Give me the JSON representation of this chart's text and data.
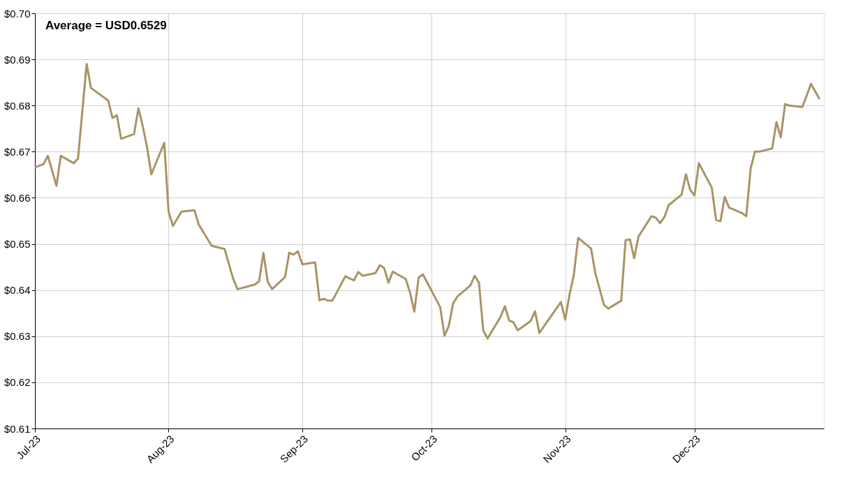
{
  "chart_data": {
    "type": "line",
    "annotations": [
      "Average = USD0.6529"
    ],
    "x": [
      "2023-07-01",
      "2023-07-03",
      "2023-07-04",
      "2023-07-06",
      "2023-07-07",
      "2023-07-10",
      "2023-07-11",
      "2023-07-13",
      "2023-07-14",
      "2023-07-18",
      "2023-07-19",
      "2023-07-20",
      "2023-07-21",
      "2023-07-24",
      "2023-07-25",
      "2023-07-26",
      "2023-07-27",
      "2023-07-28",
      "2023-07-31",
      "2023-08-01",
      "2023-08-02",
      "2023-08-04",
      "2023-08-07",
      "2023-08-08",
      "2023-08-11",
      "2023-08-14",
      "2023-08-16",
      "2023-08-17",
      "2023-08-21",
      "2023-08-22",
      "2023-08-23",
      "2023-08-24",
      "2023-08-25",
      "2023-08-28",
      "2023-08-29",
      "2023-08-30",
      "2023-08-31",
      "2023-09-01",
      "2023-09-04",
      "2023-09-05",
      "2023-09-06",
      "2023-09-07",
      "2023-09-08",
      "2023-09-11",
      "2023-09-13",
      "2023-09-14",
      "2023-09-15",
      "2023-09-18",
      "2023-09-19",
      "2023-09-20",
      "2023-09-21",
      "2023-09-22",
      "2023-09-25",
      "2023-09-26",
      "2023-09-27",
      "2023-09-28",
      "2023-09-29",
      "2023-10-03",
      "2023-10-04",
      "2023-10-05",
      "2023-10-06",
      "2023-10-07",
      "2023-10-10",
      "2023-10-11",
      "2023-10-12",
      "2023-10-13",
      "2023-10-14",
      "2023-10-17",
      "2023-10-18",
      "2023-10-19",
      "2023-10-20",
      "2023-10-21",
      "2023-10-24",
      "2023-10-25",
      "2023-10-26",
      "2023-10-31",
      "2023-11-01",
      "2023-11-02",
      "2023-11-03",
      "2023-11-04",
      "2023-11-07",
      "2023-11-08",
      "2023-11-10",
      "2023-11-11",
      "2023-11-14",
      "2023-11-15",
      "2023-11-16",
      "2023-11-17",
      "2023-11-18",
      "2023-11-21",
      "2023-11-22",
      "2023-11-23",
      "2023-11-24",
      "2023-11-25",
      "2023-11-28",
      "2023-11-29",
      "2023-11-30",
      "2023-12-01",
      "2023-12-02",
      "2023-12-05",
      "2023-12-06",
      "2023-12-07",
      "2023-12-08",
      "2023-12-09",
      "2023-12-12",
      "2023-12-13",
      "2023-12-14",
      "2023-12-15",
      "2023-12-16",
      "2023-12-19",
      "2023-12-20",
      "2023-12-21",
      "2023-12-22",
      "2023-12-23",
      "2023-12-26",
      "2023-12-27",
      "2023-12-28",
      "2023-12-30"
    ],
    "series": [
      {
        "color": "#a89466",
        "values": [
          0.6666,
          0.6673,
          0.6691,
          0.6626,
          0.6691,
          0.6675,
          0.6685,
          0.689,
          0.6838,
          0.6811,
          0.6773,
          0.6779,
          0.6728,
          0.6738,
          0.6794,
          0.6756,
          0.671,
          0.6651,
          0.6719,
          0.657,
          0.6539,
          0.657,
          0.6573,
          0.6542,
          0.6496,
          0.6489,
          0.6424,
          0.6402,
          0.6412,
          0.6419,
          0.6481,
          0.6418,
          0.6402,
          0.6428,
          0.6481,
          0.6477,
          0.6484,
          0.6456,
          0.646,
          0.6378,
          0.6381,
          0.6377,
          0.6377,
          0.643,
          0.6421,
          0.6439,
          0.6431,
          0.6437,
          0.6454,
          0.6448,
          0.6416,
          0.644,
          0.6424,
          0.6395,
          0.6353,
          0.6427,
          0.6434,
          0.6363,
          0.6301,
          0.6322,
          0.6371,
          0.6386,
          0.641,
          0.6431,
          0.6416,
          0.6312,
          0.6295,
          0.6342,
          0.6365,
          0.6334,
          0.633,
          0.6313,
          0.6333,
          0.6354,
          0.6307,
          0.6374,
          0.6336,
          0.639,
          0.6433,
          0.6513,
          0.649,
          0.6436,
          0.6368,
          0.636,
          0.6377,
          0.6508,
          0.651,
          0.6469,
          0.6516,
          0.656,
          0.6557,
          0.6545,
          0.6558,
          0.6584,
          0.6607,
          0.6651,
          0.6617,
          0.6605,
          0.6675,
          0.6622,
          0.6552,
          0.6549,
          0.6602,
          0.6579,
          0.6567,
          0.656,
          0.6663,
          0.67,
          0.67,
          0.6707,
          0.6764,
          0.6731,
          0.6803,
          0.68,
          0.6797,
          0.6821,
          0.6847,
          0.6814
        ]
      }
    ],
    "xlim": [
      "2023-07-01",
      "2023-12-31"
    ],
    "xticks": [
      {
        "value": "2023-07-01",
        "label": "Jul-23"
      },
      {
        "value": "2023-08-01",
        "label": "Aug-23"
      },
      {
        "value": "2023-09-01",
        "label": "Sep-23"
      },
      {
        "value": "2023-10-01",
        "label": "Oct-23"
      },
      {
        "value": "2023-11-01",
        "label": "Nov-23"
      },
      {
        "value": "2023-12-01",
        "label": "Dec-23"
      }
    ],
    "ylim": [
      0.61,
      0.7
    ],
    "yticks": [
      {
        "value": 0.61,
        "label": "$0.61"
      },
      {
        "value": 0.62,
        "label": "$0.62"
      },
      {
        "value": 0.63,
        "label": "$0.63"
      },
      {
        "value": 0.64,
        "label": "$0.64"
      },
      {
        "value": 0.65,
        "label": "$0.65"
      },
      {
        "value": 0.66,
        "label": "$0.66"
      },
      {
        "value": 0.67,
        "label": "$0.67"
      },
      {
        "value": 0.68,
        "label": "$0.68"
      },
      {
        "value": 0.69,
        "label": "$0.69"
      },
      {
        "value": 0.7,
        "label": "$0.70"
      }
    ],
    "grid": true,
    "marker": "none",
    "line_style": "solid"
  }
}
